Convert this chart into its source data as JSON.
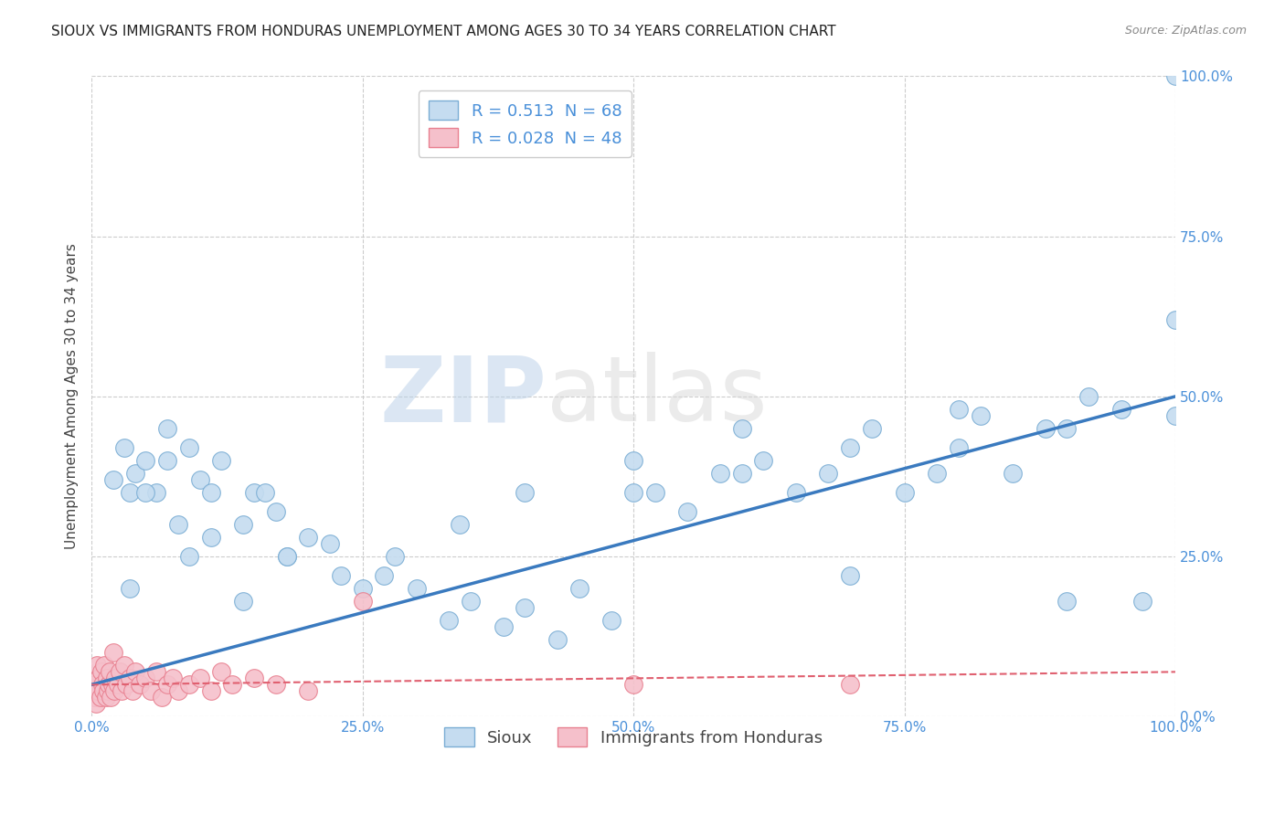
{
  "title": "SIOUX VS IMMIGRANTS FROM HONDURAS UNEMPLOYMENT AMONG AGES 30 TO 34 YEARS CORRELATION CHART",
  "source": "Source: ZipAtlas.com",
  "ylabel": "Unemployment Among Ages 30 to 34 years",
  "legend_labels": [
    "Sioux",
    "Immigrants from Honduras"
  ],
  "sioux_R": 0.513,
  "sioux_N": 68,
  "honduras_R": 0.028,
  "honduras_N": 48,
  "sioux_color": "#c5dcf0",
  "sioux_edge_color": "#7aadd4",
  "sioux_line_color": "#3a7abf",
  "honduras_color": "#f5c0cb",
  "honduras_edge_color": "#e88090",
  "honduras_line_color": "#e06070",
  "background_color": "#ffffff",
  "grid_color": "#cccccc",
  "tick_color": "#4a90d9",
  "sioux_x": [
    3.0,
    3.5,
    4.0,
    5.0,
    6.0,
    7.0,
    8.0,
    9.0,
    10.0,
    11.0,
    12.0,
    14.0,
    15.0,
    16.0,
    17.0,
    18.0,
    20.0,
    22.0,
    25.0,
    27.0,
    30.0,
    33.0,
    35.0,
    38.0,
    40.0,
    43.0,
    45.0,
    48.0,
    50.0,
    52.0,
    55.0,
    58.0,
    60.0,
    62.0,
    65.0,
    68.0,
    70.0,
    72.0,
    75.0,
    78.0,
    80.0,
    82.0,
    85.0,
    88.0,
    90.0,
    92.0,
    95.0,
    97.0,
    100.0,
    100.0,
    100.0,
    2.0,
    3.5,
    5.0,
    7.0,
    9.0,
    11.0,
    14.0,
    18.0,
    23.0,
    28.0,
    34.0,
    40.0,
    50.0,
    60.0,
    70.0,
    80.0,
    90.0
  ],
  "sioux_y": [
    42.0,
    35.0,
    38.0,
    40.0,
    35.0,
    45.0,
    30.0,
    42.0,
    37.0,
    35.0,
    40.0,
    30.0,
    35.0,
    35.0,
    32.0,
    25.0,
    28.0,
    27.0,
    20.0,
    22.0,
    20.0,
    15.0,
    18.0,
    14.0,
    17.0,
    12.0,
    20.0,
    15.0,
    35.0,
    35.0,
    32.0,
    38.0,
    38.0,
    40.0,
    35.0,
    38.0,
    42.0,
    45.0,
    35.0,
    38.0,
    42.0,
    47.0,
    38.0,
    45.0,
    45.0,
    50.0,
    48.0,
    18.0,
    100.0,
    47.0,
    62.0,
    37.0,
    20.0,
    35.0,
    40.0,
    25.0,
    28.0,
    18.0,
    25.0,
    22.0,
    25.0,
    30.0,
    35.0,
    40.0,
    45.0,
    22.0,
    48.0,
    18.0
  ],
  "honduras_x": [
    0.2,
    0.3,
    0.4,
    0.5,
    0.6,
    0.7,
    0.8,
    0.9,
    1.0,
    1.1,
    1.2,
    1.3,
    1.4,
    1.5,
    1.6,
    1.7,
    1.8,
    1.9,
    2.0,
    2.1,
    2.2,
    2.4,
    2.6,
    2.8,
    3.0,
    3.2,
    3.5,
    3.8,
    4.0,
    4.5,
    5.0,
    5.5,
    6.0,
    6.5,
    7.0,
    7.5,
    8.0,
    9.0,
    10.0,
    11.0,
    12.0,
    13.0,
    15.0,
    17.0,
    20.0,
    25.0,
    50.0,
    70.0
  ],
  "honduras_y": [
    3.0,
    5.0,
    2.0,
    8.0,
    4.0,
    6.0,
    3.0,
    7.0,
    5.0,
    4.0,
    8.0,
    3.0,
    6.0,
    4.0,
    5.0,
    7.0,
    3.0,
    5.0,
    10.0,
    4.0,
    6.0,
    5.0,
    7.0,
    4.0,
    8.0,
    5.0,
    6.0,
    4.0,
    7.0,
    5.0,
    6.0,
    4.0,
    7.0,
    3.0,
    5.0,
    6.0,
    4.0,
    5.0,
    6.0,
    4.0,
    7.0,
    5.0,
    6.0,
    5.0,
    4.0,
    18.0,
    5.0,
    5.0
  ],
  "xlim": [
    0,
    100
  ],
  "ylim": [
    0,
    100
  ],
  "xticks": [
    0,
    25,
    50,
    75,
    100
  ],
  "yticks": [
    0,
    25,
    50,
    75,
    100
  ],
  "xticklabels": [
    "0.0%",
    "25.0%",
    "50.0%",
    "75.0%",
    "100.0%"
  ],
  "yticklabels": [
    "0.0%",
    "25.0%",
    "50.0%",
    "75.0%",
    "100.0%"
  ],
  "watermark_zip": "ZIP",
  "watermark_atlas": "atlas",
  "title_fontsize": 11,
  "axis_fontsize": 11,
  "tick_fontsize": 11
}
